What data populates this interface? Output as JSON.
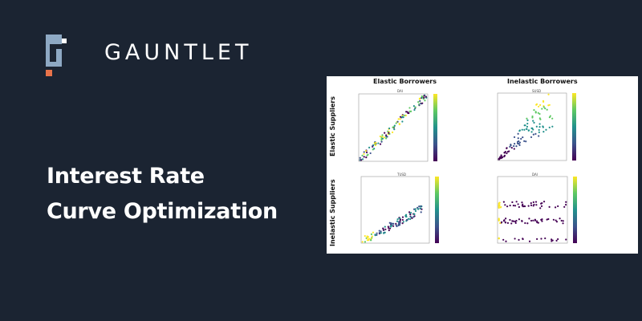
{
  "brand": {
    "name": "GAUNTLET",
    "logo_colors": {
      "main": "#8ea9c4",
      "accent": "#e8734a",
      "white": "#ffffff"
    }
  },
  "headline": {
    "line1": "Interest Rate",
    "line2": "Curve Optimization"
  },
  "figure": {
    "col_titles": [
      "Elastic Borrowers",
      "Inelastic Borrowers"
    ],
    "row_titles": [
      "Elastic Suppliers",
      "Inelastic Suppliers"
    ],
    "subplot_titles": [
      "DAI",
      "SUSD",
      "TUSD",
      "DAI"
    ],
    "colormap": "viridis"
  },
  "colors": {
    "background": "#1b2432",
    "text": "#ffffff"
  }
}
